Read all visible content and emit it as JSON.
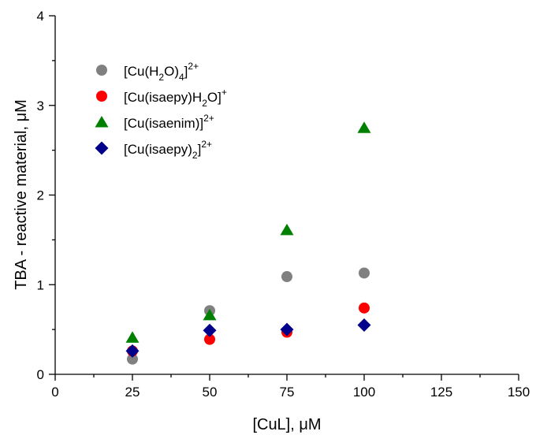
{
  "chart_data": {
    "type": "scatter",
    "xlabel": "[CuL], μM",
    "ylabel": "TBA - reactive material, μM",
    "xlim": [
      0,
      150
    ],
    "ylim": [
      0,
      4
    ],
    "xticks": [
      0,
      25,
      50,
      75,
      100,
      125,
      150
    ],
    "yticks": [
      0,
      1,
      2,
      3,
      4
    ],
    "grid": false,
    "legend_position": "top-left",
    "series": [
      {
        "name_parts": [
          [
            "[Cu(H",
            ""
          ],
          [
            "2",
            "sub"
          ],
          [
            "O)",
            ""
          ],
          [
            "4",
            "sub"
          ],
          [
            "]",
            ""
          ],
          [
            "2+",
            "sup"
          ]
        ],
        "marker": "circle",
        "color": "#808080",
        "x": [
          25,
          50,
          75,
          100
        ],
        "y": [
          0.17,
          0.71,
          1.09,
          1.13
        ]
      },
      {
        "name_parts": [
          [
            "[Cu(isaepy)H",
            ""
          ],
          [
            "2",
            "sub"
          ],
          [
            "O]",
            ""
          ],
          [
            "+",
            "sup"
          ]
        ],
        "marker": "circle",
        "color": "#ff0000",
        "x": [
          25,
          50,
          75,
          100
        ],
        "y": [
          0.26,
          0.39,
          0.47,
          0.74
        ]
      },
      {
        "name_parts": [
          [
            "[Cu(isaenim)]",
            ""
          ],
          [
            "2+",
            "sup"
          ]
        ],
        "marker": "triangle",
        "color": "#008000",
        "x": [
          25,
          50,
          75,
          100
        ],
        "y": [
          0.41,
          0.66,
          1.61,
          2.75
        ]
      },
      {
        "name_parts": [
          [
            "[Cu(isaepy)",
            ""
          ],
          [
            "2",
            "sub"
          ],
          [
            "]",
            ""
          ],
          [
            "2+",
            "sup"
          ]
        ],
        "marker": "diamond",
        "color": "#00008b",
        "x": [
          25,
          50,
          75,
          100
        ],
        "y": [
          0.26,
          0.49,
          0.5,
          0.55
        ]
      }
    ]
  }
}
